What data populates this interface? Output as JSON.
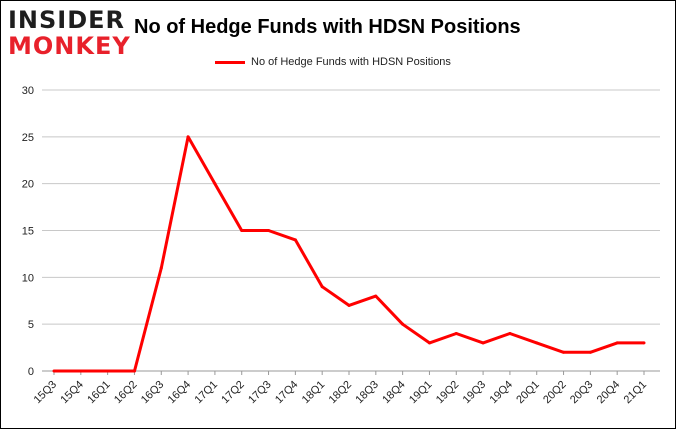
{
  "branding": {
    "line1": "INSIDER",
    "line2": "MONKEY"
  },
  "chart_data": {
    "type": "line",
    "title": "No of Hedge Funds with HDSN Positions",
    "xlabel": "",
    "ylabel": "",
    "categories": [
      "15Q3",
      "15Q4",
      "16Q1",
      "16Q2",
      "16Q3",
      "16Q4",
      "17Q1",
      "17Q2",
      "17Q3",
      "17Q4",
      "18Q1",
      "18Q2",
      "18Q3",
      "18Q4",
      "19Q1",
      "19Q2",
      "19Q3",
      "19Q4",
      "20Q1",
      "20Q2",
      "20Q3",
      "20Q4",
      "21Q1"
    ],
    "series": [
      {
        "name": "No of Hedge Funds with HDSN Positions",
        "color": "#ff0000",
        "values": [
          0,
          0,
          0,
          0,
          11,
          25,
          20,
          15,
          15,
          14,
          9,
          7,
          8,
          5,
          3,
          4,
          3,
          4,
          3,
          2,
          2,
          3,
          3
        ]
      }
    ],
    "ylim": [
      0,
      30
    ],
    "yticks": [
      0,
      5,
      10,
      15,
      20,
      25,
      30
    ],
    "grid": true,
    "legend_position": "top-center"
  }
}
